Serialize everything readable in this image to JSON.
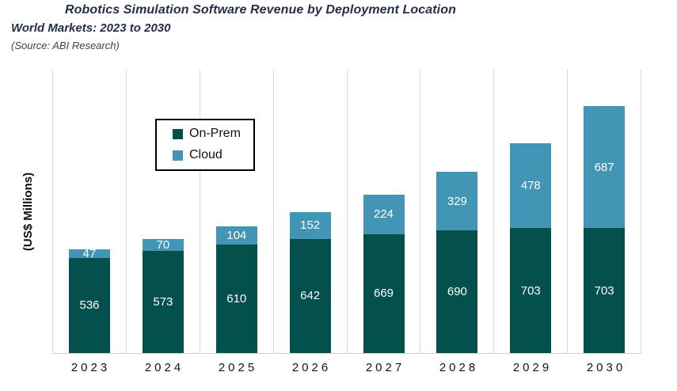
{
  "chart_data": {
    "type": "bar",
    "stacked": true,
    "title": "Robotics Simulation Software Revenue by Deployment Location",
    "subtitle": "World Markets: 2023 to 2030",
    "source": "(Source: ABI Research)",
    "ylabel": "(US$ Millions)",
    "xlabel": "",
    "categories": [
      "2023",
      "2024",
      "2025",
      "2026",
      "2027",
      "2028",
      "2029",
      "2030"
    ],
    "series": [
      {
        "name": "On-Prem",
        "color": "#04504c",
        "values": [
          536,
          573,
          610,
          642,
          669,
          690,
          703,
          703
        ]
      },
      {
        "name": "Cloud",
        "color": "#4295b5",
        "values": [
          47,
          70,
          104,
          152,
          224,
          329,
          478,
          687
        ]
      }
    ],
    "ylim": [
      0,
      1600
    ],
    "y_ticks_visible": false,
    "gridlines": "vertical category separators, light gray",
    "legend_position": "inside-top-left",
    "data_labels": "white values centered in each segment"
  },
  "colors": {
    "title_text": "#242f49",
    "gridline": "#d9d9d9",
    "axis_line": "#cfcfcf",
    "data_label_text": "#ffffff",
    "legend_border": "#000000"
  }
}
